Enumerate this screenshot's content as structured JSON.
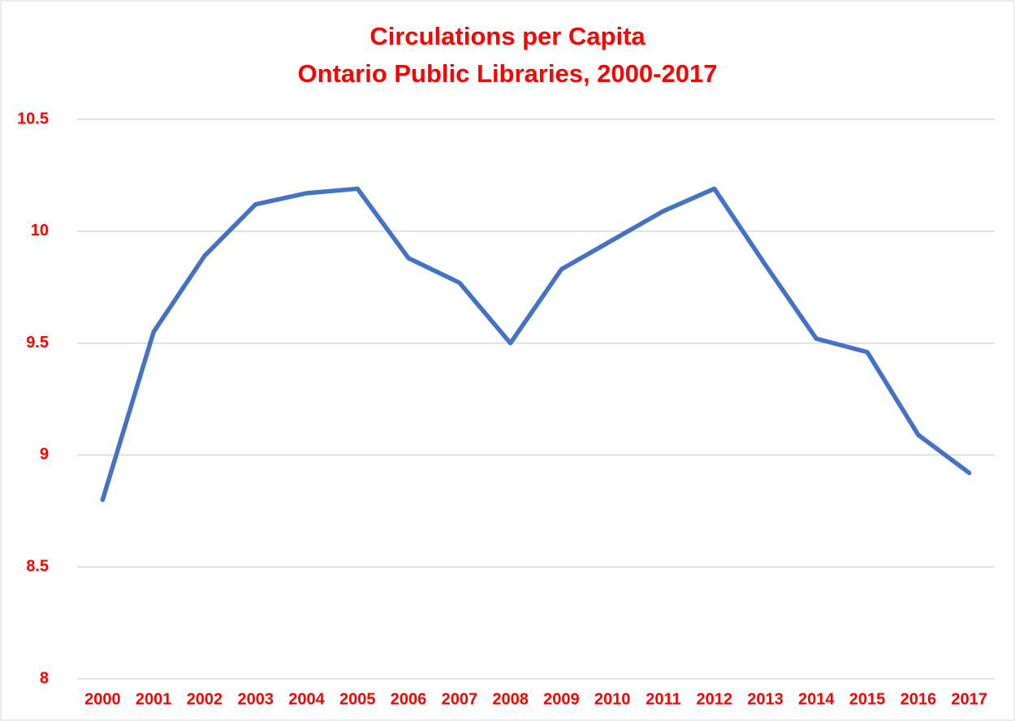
{
  "chart_data": {
    "type": "line",
    "title": [
      "Circulations per Capita",
      "Ontario Public Libraries, 2000-2017"
    ],
    "categories": [
      "2000",
      "2001",
      "2002",
      "2003",
      "2004",
      "2005",
      "2006",
      "2007",
      "2008",
      "2009",
      "2010",
      "2011",
      "2012",
      "2013",
      "2014",
      "2015",
      "2016",
      "2017"
    ],
    "series": [
      {
        "name": "Circulations per Capita",
        "color": "#4472c4",
        "values": [
          8.8,
          9.55,
          9.89,
          10.12,
          10.17,
          10.19,
          9.88,
          9.77,
          9.5,
          9.83,
          9.96,
          10.09,
          10.19,
          9.85,
          9.52,
          9.46,
          9.09,
          8.92
        ]
      }
    ],
    "ylim": [
      8,
      10.5
    ],
    "yticks": [
      8,
      8.5,
      9,
      9.5,
      10,
      10.5
    ],
    "grid": true
  }
}
